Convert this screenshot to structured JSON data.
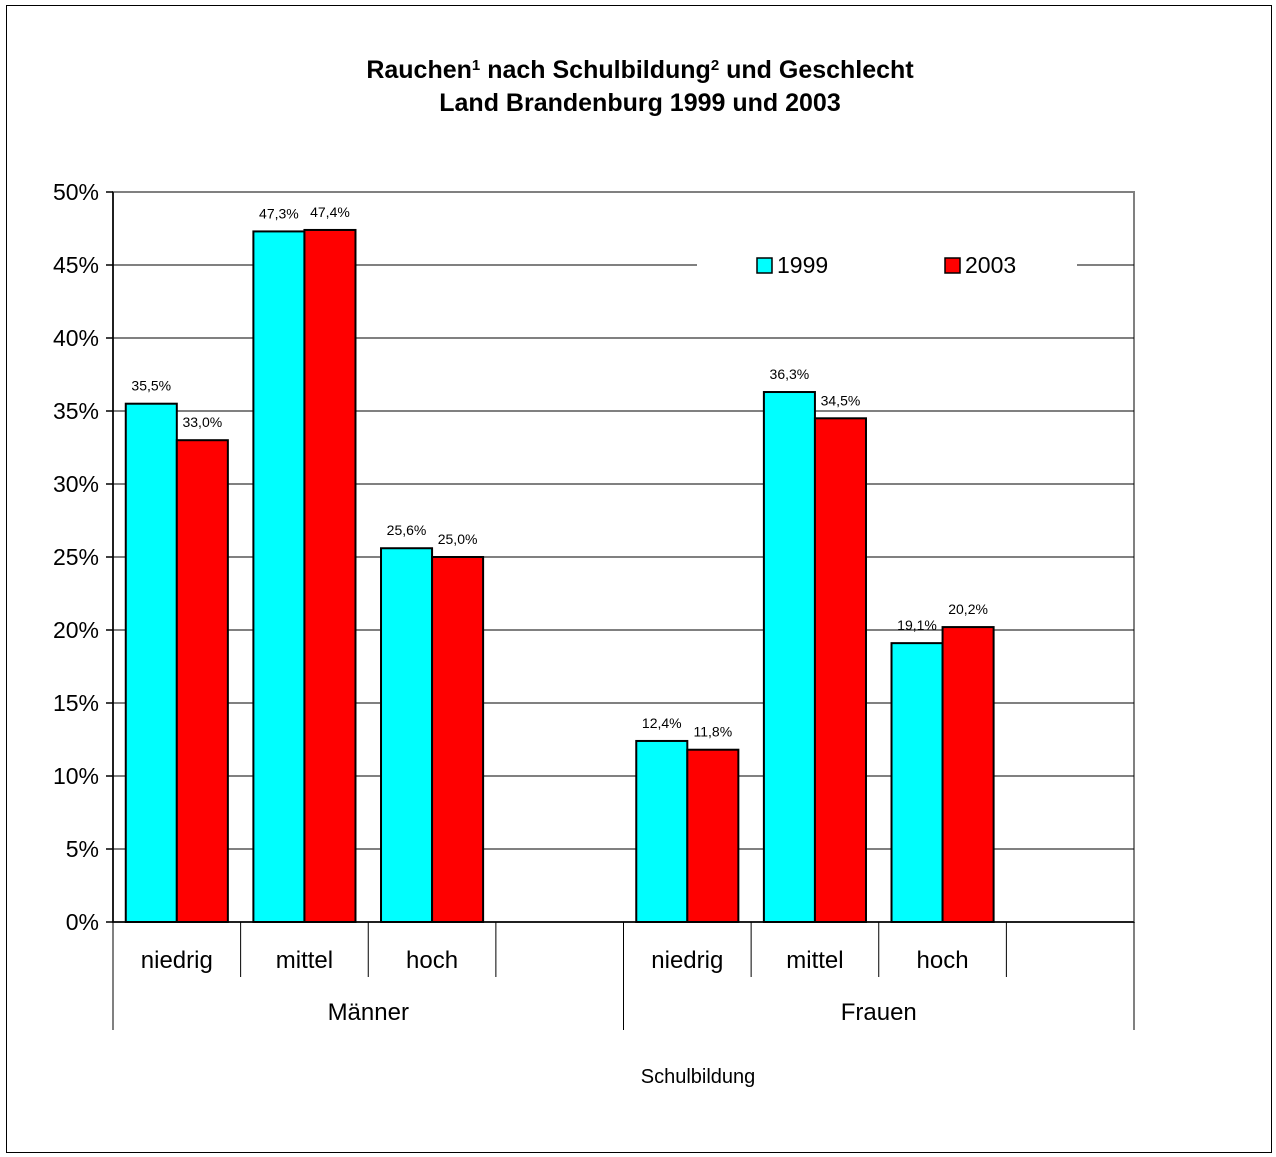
{
  "chart_data": {
    "type": "bar",
    "title_line1_parts": [
      "Rauchen",
      "1",
      " nach Schulbildung",
      "2",
      " und Geschlecht"
    ],
    "title_line2": "Land Brandenburg 1999 und 2003",
    "xlabel": "Schulbildung",
    "ylabel": "",
    "ylim": [
      0,
      0.5
    ],
    "y_ticks": [
      "0%",
      "5%",
      "10%",
      "15%",
      "20%",
      "25%",
      "30%",
      "35%",
      "40%",
      "45%",
      "50%"
    ],
    "groups": [
      "Männer",
      "Frauen"
    ],
    "categories": [
      "niedrig",
      "mittel",
      "hoch",
      "",
      "niedrig",
      "mittel",
      "hoch"
    ],
    "series": [
      {
        "name": "1999",
        "color": "#00ffff",
        "values": [
          0.355,
          0.473,
          0.256,
          null,
          0.124,
          0.363,
          0.191
        ],
        "labels": [
          "35,5%",
          "47,3%",
          "25,6%",
          "",
          "12,4%",
          "36,3%",
          "19,1%"
        ]
      },
      {
        "name": "2003",
        "color": "#ff0000",
        "values": [
          0.33,
          0.474,
          0.25,
          null,
          0.118,
          0.345,
          0.202
        ],
        "labels": [
          "33,0%",
          "47,4%",
          "25,0%",
          "",
          "11,8%",
          "34,5%",
          "20,2%"
        ]
      }
    ],
    "legend": "top-right",
    "grid": true
  }
}
